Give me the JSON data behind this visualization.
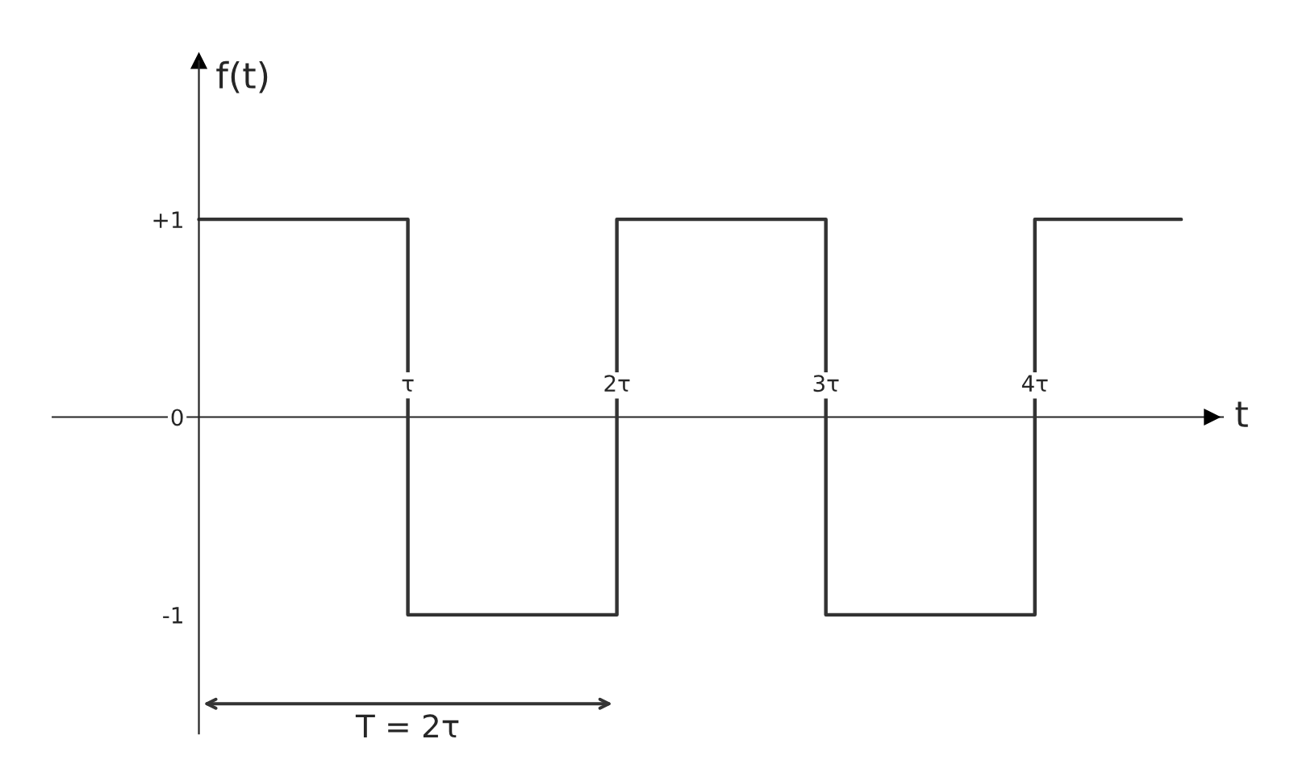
{
  "chart_data": {
    "type": "line",
    "xlabel": "t",
    "ylabel": "f(t)",
    "x": [
      0,
      1,
      1,
      2,
      2,
      3,
      3,
      4,
      4,
      4.7
    ],
    "series": [
      {
        "color": "#333333",
        "values": [
          1,
          1,
          -1,
          -1,
          1,
          1,
          -1,
          -1,
          1,
          1
        ]
      }
    ],
    "xlim": [
      -0.7,
      4.9
    ],
    "ylim": [
      -1.6,
      1.8
    ],
    "xticks": [
      {
        "value": 1,
        "label": "τ"
      },
      {
        "value": 2,
        "label": "2τ"
      },
      {
        "value": 3,
        "label": "3τ"
      },
      {
        "value": 4,
        "label": "4τ"
      }
    ],
    "yticks": [
      {
        "value": 1,
        "label": "+1"
      },
      {
        "value": 0,
        "label": "0"
      },
      {
        "value": -1,
        "label": "-1"
      }
    ],
    "annotations": [
      "T = 2τ"
    ],
    "grid": false,
    "legend": false
  }
}
